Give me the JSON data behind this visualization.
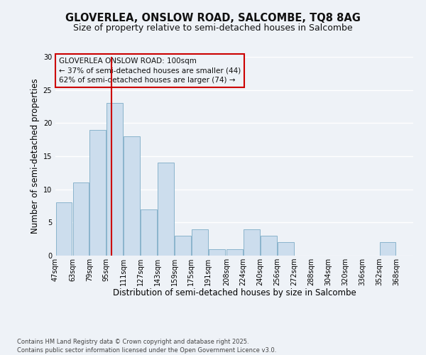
{
  "title": "GLOVERLEA, ONSLOW ROAD, SALCOMBE, TQ8 8AG",
  "subtitle": "Size of property relative to semi-detached houses in Salcombe",
  "xlabel": "Distribution of semi-detached houses by size in Salcombe",
  "ylabel": "Number of semi-detached properties",
  "footer_line1": "Contains HM Land Registry data © Crown copyright and database right 2025.",
  "footer_line2": "Contains public sector information licensed under the Open Government Licence v3.0.",
  "annotation_line1": "GLOVERLEA ONSLOW ROAD: 100sqm",
  "annotation_line2": "← 37% of semi-detached houses are smaller (44)",
  "annotation_line3": "62% of semi-detached houses are larger (74) →",
  "bar_left_edges": [
    47,
    63,
    79,
    95,
    111,
    127,
    143,
    159,
    175,
    191,
    208,
    224,
    240,
    256,
    272,
    288,
    304,
    320,
    336,
    352
  ],
  "bar_widths": [
    16,
    16,
    16,
    16,
    16,
    16,
    16,
    16,
    16,
    16,
    16,
    16,
    16,
    16,
    16,
    16,
    16,
    16,
    16,
    16
  ],
  "bar_heights": [
    8,
    11,
    19,
    23,
    18,
    7,
    14,
    3,
    4,
    1,
    1,
    4,
    3,
    2,
    0,
    0,
    0,
    0,
    0,
    2
  ],
  "bin_labels": [
    "47sqm",
    "63sqm",
    "79sqm",
    "95sqm",
    "111sqm",
    "127sqm",
    "143sqm",
    "159sqm",
    "175sqm",
    "191sqm",
    "208sqm",
    "224sqm",
    "240sqm",
    "256sqm",
    "272sqm",
    "288sqm",
    "304sqm",
    "320sqm",
    "336sqm",
    "352sqm",
    "368sqm"
  ],
  "bar_color": "#ccdded",
  "bar_edge_color": "#8ab4cc",
  "marker_x": 100,
  "marker_color": "#cc0000",
  "ylim": [
    0,
    30
  ],
  "xlim": [
    47,
    384
  ],
  "yticks": [
    0,
    5,
    10,
    15,
    20,
    25,
    30
  ],
  "bg_color": "#eef2f7",
  "grid_color": "#ffffff",
  "annotation_box_color": "#cc0000",
  "title_fontsize": 10.5,
  "subtitle_fontsize": 9,
  "axis_label_fontsize": 8.5,
  "tick_fontsize": 7,
  "annotation_fontsize": 7.5,
  "footer_fontsize": 6
}
